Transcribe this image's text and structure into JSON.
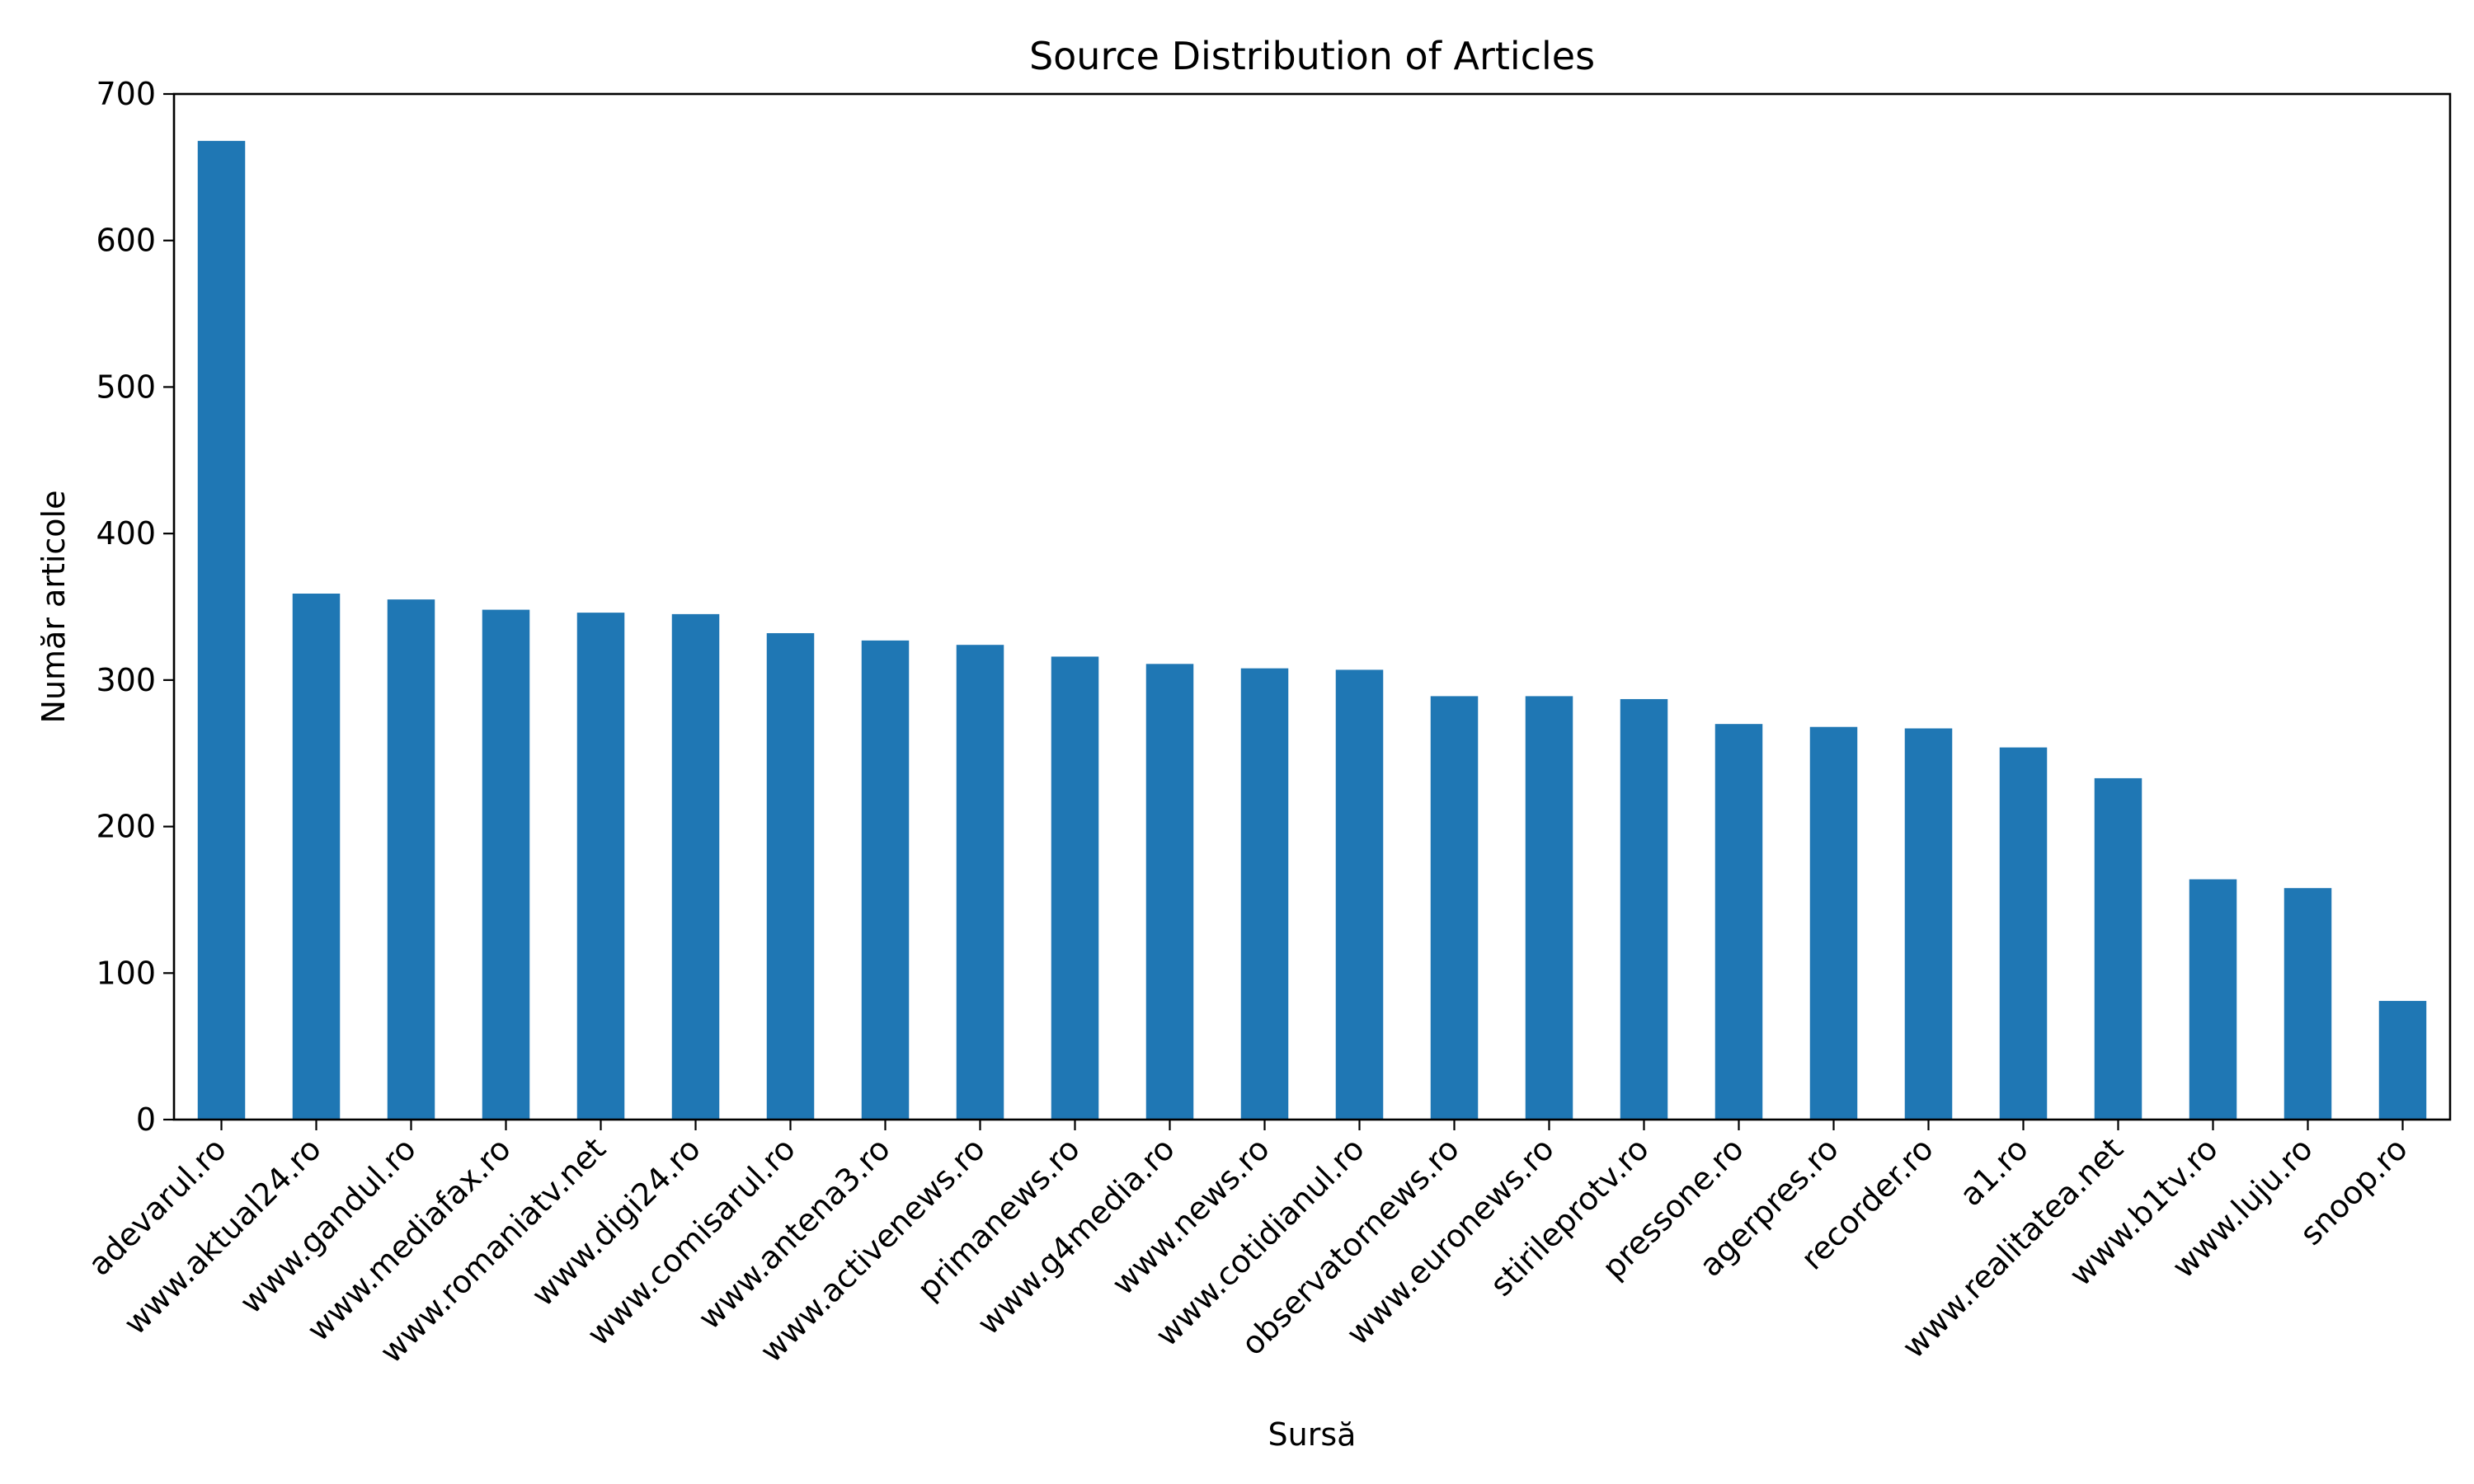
{
  "chart_data": {
    "type": "bar",
    "title": "Source Distribution of Articles",
    "xlabel": "Sursă",
    "ylabel": "Număr articole",
    "ylim": [
      0,
      700
    ],
    "yticks": [
      0,
      100,
      200,
      300,
      400,
      500,
      600,
      700
    ],
    "grid": false,
    "legend": "none",
    "bar_color": "#1f77b4",
    "categories": [
      "adevarul.ro",
      "www.aktual24.ro",
      "www.gandul.ro",
      "www.mediafax.ro",
      "www.romaniatv.net",
      "www.digi24.ro",
      "www.comisarul.ro",
      "www.antena3.ro",
      "www.activenews.ro",
      "primanews.ro",
      "www.g4media.ro",
      "www.news.ro",
      "www.cotidianul.ro",
      "observatornews.ro",
      "www.euronews.ro",
      "stirileprotv.ro",
      "pressone.ro",
      "agerpres.ro",
      "recorder.ro",
      "a1.ro",
      "www.realitatea.net",
      "www.b1tv.ro",
      "www.luju.ro",
      "snoop.ro"
    ],
    "values": [
      668,
      359,
      355,
      348,
      346,
      345,
      332,
      327,
      324,
      316,
      311,
      308,
      307,
      289,
      289,
      287,
      270,
      268,
      267,
      254,
      233,
      164,
      158,
      81
    ]
  }
}
